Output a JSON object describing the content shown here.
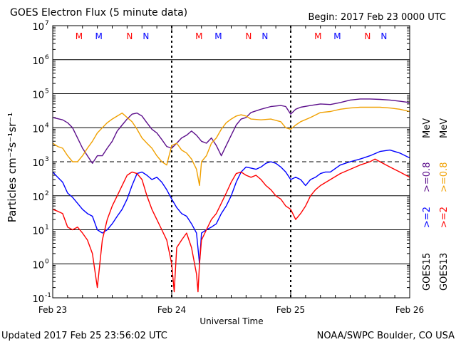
{
  "header": {
    "title": "GOES Electron Flux (5 minute data)",
    "begin": "Begin: 2017 Feb 23 0000 UTC"
  },
  "footer": {
    "updated": "Updated 2017 Feb 25 23:56:02 UTC",
    "credit": "NOAA/SWPC Boulder, CO USA"
  },
  "colors": {
    "goes15_2mev": "#0000ff",
    "goes15_08mev": "#5c0f8b",
    "goes13_2mev": "#ff0000",
    "goes13_08mev": "#f0a000",
    "markers_goes13": "#ff0000",
    "markers_goes15": "#0000ff"
  },
  "chart_data": {
    "type": "line",
    "title": "GOES Electron Flux (5 minute data)",
    "xlabel": "Universal Time",
    "ylabel": "Particles cm⁻²s⁻¹sr⁻¹",
    "y_scale": "log",
    "ylim": [
      0.1,
      10000000
    ],
    "xlim": [
      "2017-02-23 00:00",
      "2017-02-26 00:00"
    ],
    "x_ticks": [
      "Feb 23",
      "Feb 24",
      "Feb 25",
      "Feb 26"
    ],
    "y_ticks": [
      {
        "base": "10",
        "exp": "-1",
        "value": 0.1
      },
      {
        "base": "10",
        "exp": "0",
        "value": 1
      },
      {
        "base": "10",
        "exp": "1",
        "value": 10
      },
      {
        "base": "10",
        "exp": "2",
        "value": 100
      },
      {
        "base": "10",
        "exp": "3",
        "value": 1000
      },
      {
        "base": "10",
        "exp": "4",
        "value": 10000
      },
      {
        "base": "10",
        "exp": "5",
        "value": 100000
      },
      {
        "base": "10",
        "exp": "6",
        "value": 1000000
      },
      {
        "base": "10",
        "exp": "7",
        "value": 10000000
      }
    ],
    "grid": "horizontal decades",
    "threshold_line": 1000,
    "legend": {
      "groups": [
        {
          "satellite": "GOES15",
          "entries": [
            {
              "label": ">=2",
              "color": "#0000ff"
            },
            {
              "label": ">=0.8",
              "color": "#5c0f8b"
            }
          ]
        },
        {
          "satellite": "GOES13",
          "entries": [
            {
              "label": ">=2",
              "color": "#ff0000"
            },
            {
              "label": ">=0.8",
              "color": "#f0a000"
            }
          ]
        }
      ],
      "unit": "MeV",
      "placement": "right"
    },
    "markers": [
      {
        "label": "M",
        "x_hours": 5.3,
        "satellite": "GOES13"
      },
      {
        "label": "M",
        "x_hours": 9.3,
        "satellite": "GOES15"
      },
      {
        "label": "N",
        "x_hours": 15.5,
        "satellite": "GOES13"
      },
      {
        "label": "N",
        "x_hours": 18.8,
        "satellite": "GOES15"
      },
      {
        "label": "M",
        "x_hours": 29.5,
        "satellite": "GOES13"
      },
      {
        "label": "M",
        "x_hours": 33.4,
        "satellite": "GOES15"
      },
      {
        "label": "N",
        "x_hours": 39.5,
        "satellite": "GOES13"
      },
      {
        "label": "N",
        "x_hours": 42.8,
        "satellite": "GOES15"
      },
      {
        "label": "M",
        "x_hours": 53.5,
        "satellite": "GOES13"
      },
      {
        "label": "M",
        "x_hours": 57.4,
        "satellite": "GOES15"
      },
      {
        "label": "N",
        "x_hours": 63.5,
        "satellite": "GOES13"
      },
      {
        "label": "N",
        "x_hours": 66.8,
        "satellite": "GOES15"
      }
    ],
    "series": [
      {
        "name": "GOES15 >=0.8 MeV",
        "color": "#5c0f8b",
        "points": [
          [
            0,
            20000
          ],
          [
            2,
            17000
          ],
          [
            3,
            14000
          ],
          [
            4,
            10000
          ],
          [
            5,
            5000
          ],
          [
            6,
            2500
          ],
          [
            7,
            1500
          ],
          [
            8,
            900
          ],
          [
            9,
            1500
          ],
          [
            10,
            1500
          ],
          [
            11,
            2500
          ],
          [
            12,
            4000
          ],
          [
            13,
            8000
          ],
          [
            14,
            12000
          ],
          [
            15,
            18000
          ],
          [
            16,
            25000
          ],
          [
            17,
            27000
          ],
          [
            18,
            22000
          ],
          [
            19,
            14000
          ],
          [
            20,
            9000
          ],
          [
            21,
            7000
          ],
          [
            22,
            4500
          ],
          [
            23,
            2800
          ],
          [
            24,
            2500
          ],
          [
            25,
            3500
          ],
          [
            26,
            5000
          ],
          [
            27,
            6000
          ],
          [
            28,
            8000
          ],
          [
            29,
            6000
          ],
          [
            30,
            4000
          ],
          [
            31,
            3500
          ],
          [
            32,
            5000
          ],
          [
            33,
            3000
          ],
          [
            34,
            1500
          ],
          [
            35,
            3000
          ],
          [
            36,
            6000
          ],
          [
            37,
            12000
          ],
          [
            38,
            18000
          ],
          [
            39,
            20000
          ],
          [
            40,
            28000
          ],
          [
            42,
            35000
          ],
          [
            44,
            42000
          ],
          [
            46,
            45000
          ],
          [
            47,
            42000
          ],
          [
            48,
            25000
          ],
          [
            49,
            35000
          ],
          [
            50,
            40000
          ],
          [
            52,
            45000
          ],
          [
            54,
            50000
          ],
          [
            56,
            48000
          ],
          [
            58,
            55000
          ],
          [
            60,
            65000
          ],
          [
            62,
            70000
          ],
          [
            64,
            70000
          ],
          [
            66,
            68000
          ],
          [
            68,
            65000
          ],
          [
            70,
            60000
          ],
          [
            72,
            55000
          ]
        ]
      },
      {
        "name": "GOES13 >=0.8 MeV",
        "color": "#f0a000",
        "points": [
          [
            0,
            3500
          ],
          [
            1,
            2800
          ],
          [
            2,
            2500
          ],
          [
            3,
            1500
          ],
          [
            4,
            1000
          ],
          [
            5,
            1000
          ],
          [
            6,
            1500
          ],
          [
            7,
            2500
          ],
          [
            8,
            4000
          ],
          [
            9,
            7000
          ],
          [
            10,
            10000
          ],
          [
            11,
            14000
          ],
          [
            12,
            18000
          ],
          [
            13,
            22000
          ],
          [
            14,
            27000
          ],
          [
            15,
            20000
          ],
          [
            16,
            15000
          ],
          [
            17,
            9000
          ],
          [
            18,
            5000
          ],
          [
            19,
            3500
          ],
          [
            20,
            2500
          ],
          [
            21,
            1500
          ],
          [
            22,
            1000
          ],
          [
            23,
            800
          ],
          [
            24,
            3000
          ],
          [
            25,
            3500
          ],
          [
            26,
            2200
          ],
          [
            27,
            1800
          ],
          [
            28,
            1200
          ],
          [
            29,
            600
          ],
          [
            29.6,
            200
          ],
          [
            30,
            1000
          ],
          [
            31,
            1500
          ],
          [
            32,
            3500
          ],
          [
            33,
            5000
          ],
          [
            34,
            9000
          ],
          [
            35,
            14000
          ],
          [
            36,
            18000
          ],
          [
            37,
            22000
          ],
          [
            38,
            24000
          ],
          [
            39,
            22000
          ],
          [
            40,
            18000
          ],
          [
            42,
            17000
          ],
          [
            44,
            18000
          ],
          [
            46,
            15000
          ],
          [
            47,
            10000
          ],
          [
            48,
            9000
          ],
          [
            49,
            12000
          ],
          [
            50,
            15000
          ],
          [
            52,
            20000
          ],
          [
            54,
            28000
          ],
          [
            56,
            30000
          ],
          [
            58,
            35000
          ],
          [
            60,
            38000
          ],
          [
            62,
            40000
          ],
          [
            64,
            40000
          ],
          [
            66,
            40000
          ],
          [
            68,
            38000
          ],
          [
            70,
            35000
          ],
          [
            72,
            30000
          ]
        ]
      },
      {
        "name": "GOES15 >=2 MeV",
        "color": "#0000ff",
        "points": [
          [
            0,
            500
          ],
          [
            1,
            350
          ],
          [
            2,
            250
          ],
          [
            3,
            120
          ],
          [
            4,
            90
          ],
          [
            5,
            60
          ],
          [
            6,
            40
          ],
          [
            7,
            30
          ],
          [
            8,
            25
          ],
          [
            9,
            10
          ],
          [
            10,
            8
          ],
          [
            11,
            10
          ],
          [
            12,
            15
          ],
          [
            13,
            25
          ],
          [
            14,
            40
          ],
          [
            15,
            80
          ],
          [
            16,
            200
          ],
          [
            17,
            450
          ],
          [
            18,
            500
          ],
          [
            19,
            400
          ],
          [
            20,
            300
          ],
          [
            21,
            350
          ],
          [
            22,
            250
          ],
          [
            23,
            150
          ],
          [
            24,
            80
          ],
          [
            25,
            45
          ],
          [
            26,
            30
          ],
          [
            27,
            25
          ],
          [
            28,
            15
          ],
          [
            29,
            8
          ],
          [
            29.6,
            1
          ],
          [
            30,
            8
          ],
          [
            31,
            10
          ],
          [
            32,
            12
          ],
          [
            33,
            15
          ],
          [
            34,
            30
          ],
          [
            35,
            50
          ],
          [
            36,
            100
          ],
          [
            37,
            250
          ],
          [
            38,
            500
          ],
          [
            39,
            700
          ],
          [
            40,
            650
          ],
          [
            41,
            600
          ],
          [
            42,
            700
          ],
          [
            43,
            900
          ],
          [
            44,
            1000
          ],
          [
            45,
            900
          ],
          [
            46,
            700
          ],
          [
            47,
            500
          ],
          [
            48,
            300
          ],
          [
            49,
            350
          ],
          [
            50,
            300
          ],
          [
            51,
            200
          ],
          [
            52,
            300
          ],
          [
            53,
            350
          ],
          [
            54,
            450
          ],
          [
            55,
            500
          ],
          [
            56,
            500
          ],
          [
            58,
            800
          ],
          [
            60,
            1000
          ],
          [
            62,
            1200
          ],
          [
            64,
            1500
          ],
          [
            66,
            2000
          ],
          [
            68,
            2200
          ],
          [
            70,
            1800
          ],
          [
            72,
            1300
          ]
        ]
      },
      {
        "name": "GOES13 >=2 MeV",
        "color": "#ff0000",
        "points": [
          [
            0,
            40
          ],
          [
            1,
            35
          ],
          [
            2,
            30
          ],
          [
            3,
            12
          ],
          [
            4,
            10
          ],
          [
            5,
            12
          ],
          [
            6,
            8
          ],
          [
            7,
            5
          ],
          [
            8,
            2
          ],
          [
            9,
            0.2
          ],
          [
            10,
            5
          ],
          [
            11,
            20
          ],
          [
            12,
            50
          ],
          [
            13,
            100
          ],
          [
            14,
            200
          ],
          [
            15,
            400
          ],
          [
            16,
            500
          ],
          [
            17,
            450
          ],
          [
            18,
            300
          ],
          [
            19,
            100
          ],
          [
            20,
            40
          ],
          [
            21,
            20
          ],
          [
            22,
            10
          ],
          [
            23,
            5
          ],
          [
            24,
            1
          ],
          [
            24.5,
            0.15
          ],
          [
            25,
            3
          ],
          [
            26,
            5
          ],
          [
            27,
            8
          ],
          [
            28,
            3
          ],
          [
            29,
            0.5
          ],
          [
            29.3,
            0.15
          ],
          [
            29.6,
            1
          ],
          [
            30,
            5
          ],
          [
            31,
            10
          ],
          [
            32,
            20
          ],
          [
            33,
            30
          ],
          [
            34,
            60
          ],
          [
            35,
            120
          ],
          [
            36,
            250
          ],
          [
            37,
            450
          ],
          [
            38,
            500
          ],
          [
            39,
            400
          ],
          [
            40,
            350
          ],
          [
            41,
            400
          ],
          [
            42,
            300
          ],
          [
            43,
            200
          ],
          [
            44,
            150
          ],
          [
            45,
            100
          ],
          [
            46,
            80
          ],
          [
            47,
            50
          ],
          [
            48,
            40
          ],
          [
            49,
            20
          ],
          [
            50,
            30
          ],
          [
            51,
            50
          ],
          [
            52,
            100
          ],
          [
            53,
            150
          ],
          [
            54,
            200
          ],
          [
            56,
            300
          ],
          [
            58,
            450
          ],
          [
            60,
            600
          ],
          [
            62,
            800
          ],
          [
            64,
            1000
          ],
          [
            65,
            1200
          ],
          [
            66,
            1000
          ],
          [
            68,
            700
          ],
          [
            70,
            500
          ],
          [
            72,
            350
          ]
        ]
      }
    ]
  }
}
